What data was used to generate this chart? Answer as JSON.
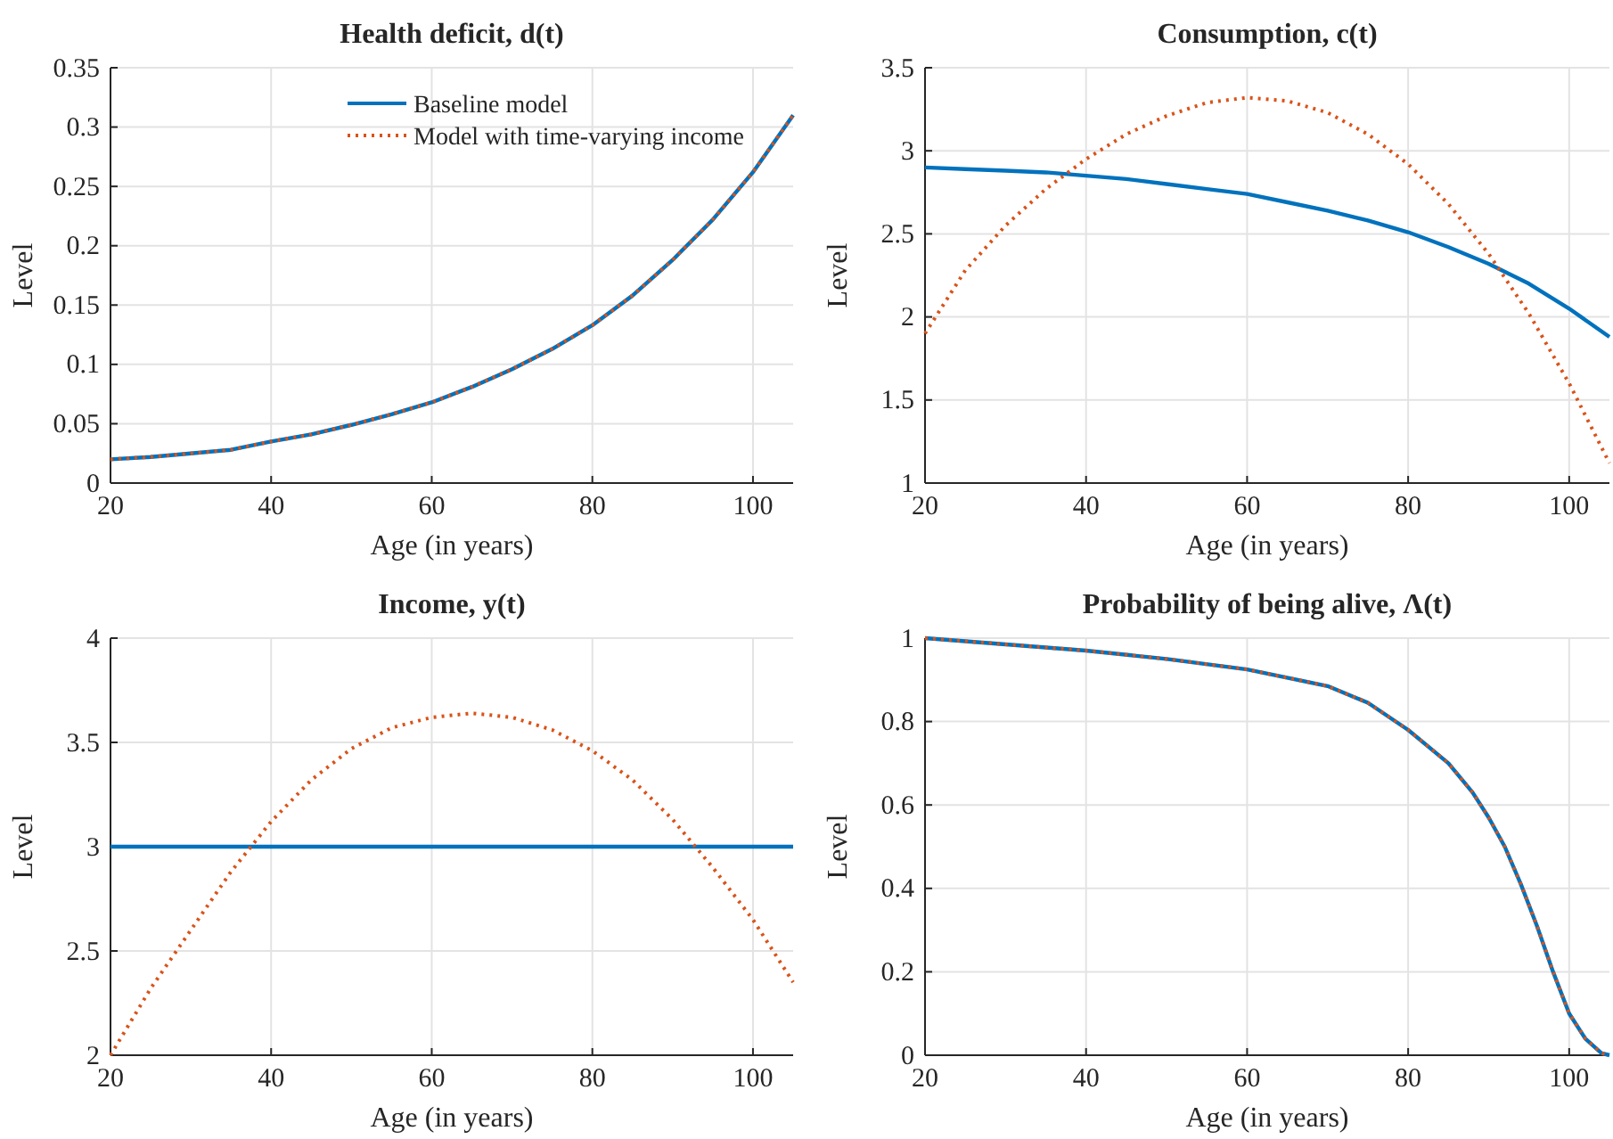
{
  "chart_data": [
    {
      "type": "line",
      "title": "Health deficit, d(t)",
      "xlabel": "Age (in years)",
      "ylabel": "Level",
      "x": [
        20,
        25,
        30,
        35,
        40,
        45,
        50,
        55,
        60,
        65,
        70,
        75,
        80,
        85,
        90,
        95,
        100,
        105
      ],
      "xlim": [
        20,
        105
      ],
      "xticks": [
        20,
        40,
        60,
        80,
        100
      ],
      "ylim": [
        0,
        0.35
      ],
      "yticks": [
        0,
        0.05,
        0.1,
        0.15,
        0.2,
        0.25,
        0.3,
        0.35
      ],
      "grid": true,
      "legend": "top right",
      "series": [
        {
          "name": "Baseline model",
          "color": "#0072bd",
          "line_style": "solid",
          "values": [
            0.02,
            0.022,
            0.025,
            0.028,
            0.035,
            0.041,
            0.049,
            0.058,
            0.068,
            0.081,
            0.096,
            0.113,
            0.133,
            0.158,
            0.188,
            0.222,
            0.262,
            0.31
          ]
        },
        {
          "name": "Model with time-varying income",
          "color": "#d95319",
          "line_style": "dotted",
          "values": [
            0.02,
            0.022,
            0.025,
            0.028,
            0.035,
            0.041,
            0.049,
            0.058,
            0.068,
            0.081,
            0.096,
            0.113,
            0.133,
            0.158,
            0.188,
            0.222,
            0.262,
            0.31
          ]
        }
      ]
    },
    {
      "type": "line",
      "title": "Consumption, c(t)",
      "xlabel": "Age (in years)",
      "ylabel": "Level",
      "x": [
        20,
        25,
        30,
        35,
        40,
        45,
        50,
        55,
        60,
        65,
        70,
        75,
        80,
        85,
        90,
        95,
        100,
        105
      ],
      "xlim": [
        20,
        105
      ],
      "xticks": [
        20,
        40,
        60,
        80,
        100
      ],
      "ylim": [
        1,
        3.5
      ],
      "yticks": [
        1,
        1.5,
        2,
        2.5,
        3,
        3.5
      ],
      "grid": true,
      "series": [
        {
          "color": "#0072bd",
          "line_style": "solid",
          "values": [
            2.9,
            2.89,
            2.88,
            2.87,
            2.85,
            2.83,
            2.8,
            2.77,
            2.74,
            2.69,
            2.64,
            2.58,
            2.51,
            2.42,
            2.32,
            2.2,
            2.05,
            1.88
          ]
        },
        {
          "color": "#d95319",
          "line_style": "dotted",
          "values": [
            1.9,
            2.28,
            2.55,
            2.77,
            2.95,
            3.1,
            3.21,
            3.29,
            3.32,
            3.3,
            3.23,
            3.1,
            2.92,
            2.68,
            2.38,
            2.02,
            1.6,
            1.12
          ]
        }
      ]
    },
    {
      "type": "line",
      "title": "Income, y(t)",
      "xlabel": "Age (in years)",
      "ylabel": "Level",
      "x": [
        20,
        25,
        30,
        35,
        40,
        45,
        50,
        55,
        60,
        65,
        70,
        75,
        80,
        85,
        90,
        95,
        100,
        105
      ],
      "xlim": [
        20,
        105
      ],
      "xticks": [
        20,
        40,
        60,
        80,
        100
      ],
      "ylim": [
        2,
        4
      ],
      "yticks": [
        2,
        2.5,
        3,
        3.5,
        4
      ],
      "grid": true,
      "series": [
        {
          "color": "#0072bd",
          "line_style": "solid",
          "values": [
            3,
            3,
            3,
            3,
            3,
            3,
            3,
            3,
            3,
            3,
            3,
            3,
            3,
            3,
            3,
            3,
            3,
            3
          ]
        },
        {
          "color": "#d95319",
          "line_style": "dotted",
          "values": [
            2.0,
            2.32,
            2.6,
            2.88,
            3.12,
            3.32,
            3.47,
            3.57,
            3.62,
            3.64,
            3.62,
            3.56,
            3.46,
            3.32,
            3.13,
            2.9,
            2.65,
            2.35
          ]
        }
      ]
    },
    {
      "type": "line",
      "title": "Probability of being alive, Λ(t)",
      "xlabel": "Age (in years)",
      "ylabel": "Level",
      "x": [
        20,
        30,
        40,
        50,
        60,
        70,
        75,
        80,
        85,
        88,
        90,
        92,
        94,
        96,
        98,
        100,
        102,
        104,
        105
      ],
      "xlim": [
        20,
        105
      ],
      "xticks": [
        20,
        40,
        60,
        80,
        100
      ],
      "ylim": [
        0,
        1
      ],
      "yticks": [
        0,
        0.2,
        0.4,
        0.6,
        0.8,
        1
      ],
      "grid": true,
      "series": [
        {
          "color": "#0072bd",
          "line_style": "solid",
          "values": [
            1.0,
            0.985,
            0.97,
            0.95,
            0.925,
            0.885,
            0.845,
            0.78,
            0.7,
            0.63,
            0.57,
            0.5,
            0.41,
            0.31,
            0.2,
            0.1,
            0.04,
            0.005,
            0.0
          ]
        },
        {
          "color": "#d95319",
          "line_style": "dotted",
          "values": [
            1.0,
            0.985,
            0.97,
            0.95,
            0.925,
            0.885,
            0.845,
            0.78,
            0.7,
            0.63,
            0.57,
            0.5,
            0.41,
            0.31,
            0.2,
            0.1,
            0.04,
            0.005,
            0.0
          ]
        }
      ]
    }
  ]
}
